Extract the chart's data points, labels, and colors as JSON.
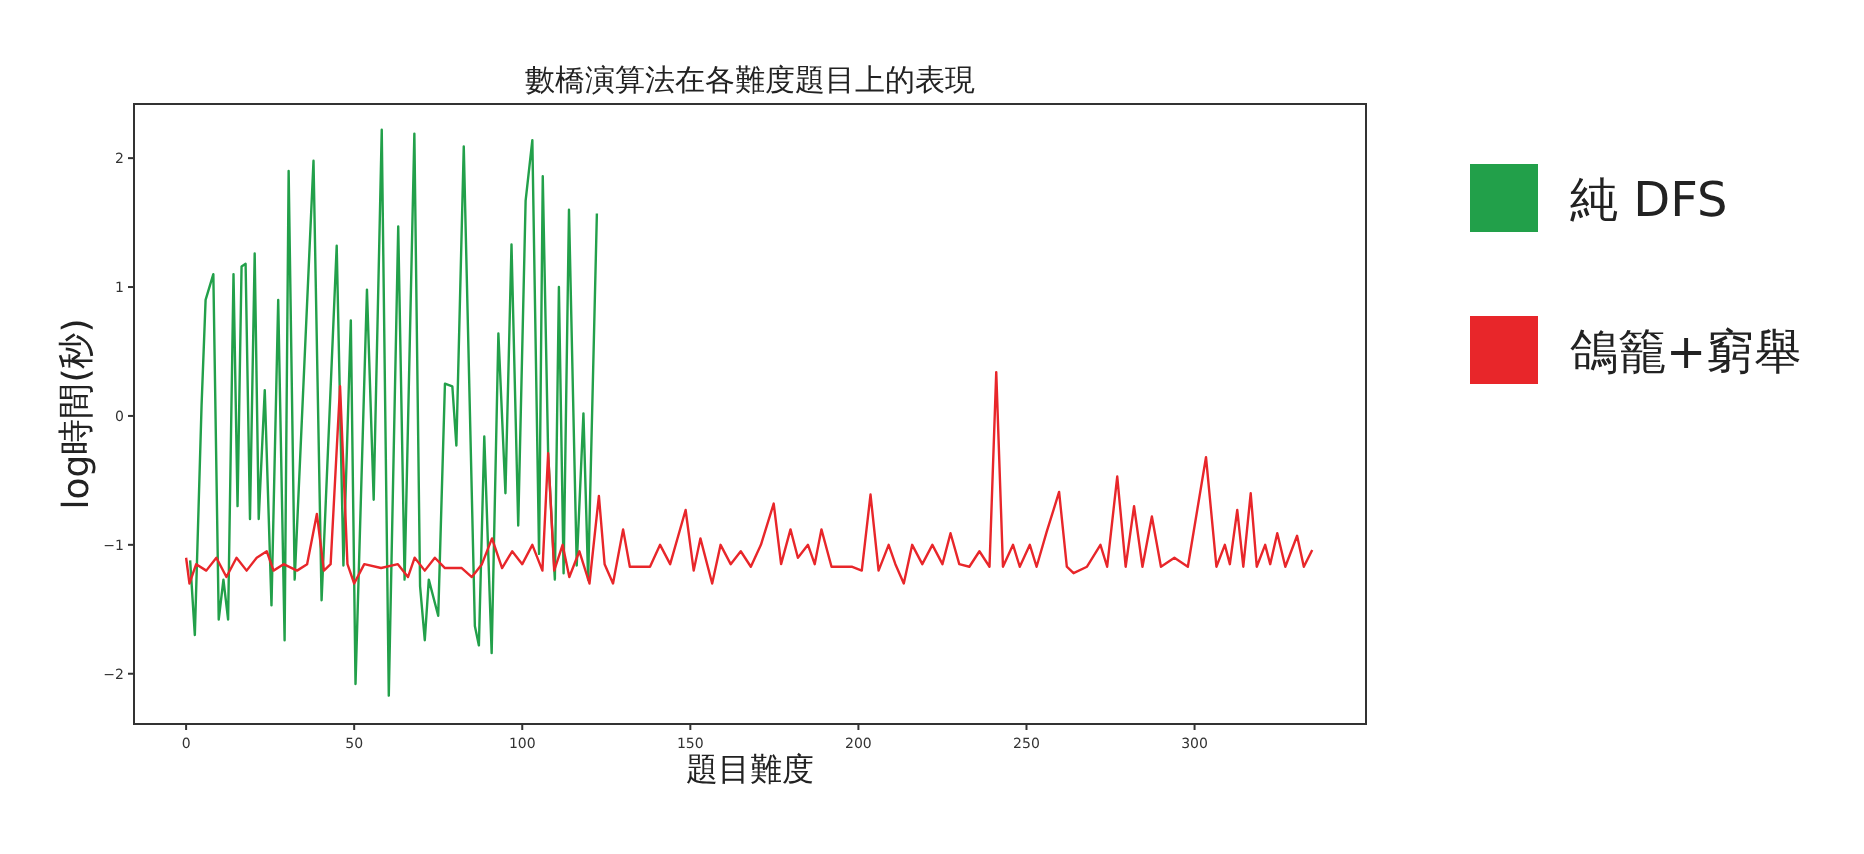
{
  "chart_data": {
    "type": "line",
    "title": "數橋演算法在各難度題目上的表現",
    "xlabel": "題目難度",
    "ylabel": "log時間(秒)",
    "xlim": [
      -15.5,
      351
    ],
    "ylim": [
      -2.39,
      2.42
    ],
    "xticks": [
      0,
      50,
      100,
      150,
      200,
      250,
      300
    ],
    "yticks": [
      -2,
      -1,
      0,
      1,
      2
    ],
    "legend": "right",
    "grid": false,
    "series": [
      {
        "name": "純 DFS",
        "color": "#22a04a",
        "x": [
          1.2,
          2.6,
          4.6,
          5.8,
          8.1,
          9.7,
          11.1,
          12.5,
          14.1,
          15.3,
          16.5,
          17.7,
          19,
          20.4,
          21.6,
          23.4,
          25.4,
          27.4,
          29.3,
          30.5,
          32.3,
          37.9,
          40.3,
          44.8,
          46.8,
          49,
          50.4,
          53.8,
          55.8,
          58.2,
          60.3,
          63.1,
          65,
          67.9,
          69.6,
          71,
          72.2,
          75,
          77,
          79.2,
          80.4,
          82.6,
          85.9,
          87.1,
          88.7,
          90.9,
          92.9,
          95,
          96.8,
          98.8,
          101,
          103,
          105,
          106.1,
          107.7,
          109.7,
          110.9,
          112.3,
          113.9,
          116.2,
          118.2,
          119.6,
          122.2
        ],
        "values": [
          -1.12,
          -1.7,
          0.08,
          0.9,
          1.1,
          -1.58,
          -1.27,
          -1.58,
          1.1,
          -0.7,
          1.16,
          1.18,
          -0.8,
          1.26,
          -0.8,
          0.2,
          -1.47,
          0.9,
          -1.74,
          1.9,
          -1.27,
          1.98,
          -1.43,
          1.32,
          -1.16,
          0.74,
          -2.08,
          0.98,
          -0.65,
          2.22,
          -2.17,
          1.47,
          -1.27,
          2.19,
          -1.32,
          -1.74,
          -1.27,
          -1.55,
          0.25,
          0.23,
          -0.23,
          2.09,
          -1.63,
          -1.78,
          -0.16,
          -1.84,
          0.64,
          -0.6,
          1.33,
          -0.85,
          1.67,
          2.14,
          -1.07,
          1.86,
          -0.29,
          -1.27,
          1.0,
          -1.22,
          1.6,
          -1.16,
          0.02,
          -1.27,
          1.57
        ]
      },
      {
        "name": "鴿籠+窮舉",
        "color": "#e8262a",
        "x": [
          0,
          1,
          3,
          6,
          9,
          12,
          15,
          18,
          21,
          24,
          26,
          29,
          33,
          36,
          38.9,
          41,
          43,
          45.8,
          48,
          50,
          53,
          58,
          63,
          66,
          68,
          71,
          74,
          77,
          82,
          85,
          88,
          91,
          94,
          97,
          100,
          103,
          106,
          107.7,
          109.5,
          112,
          114,
          117,
          120,
          122.8,
          124.5,
          127,
          130,
          132,
          138,
          141,
          144,
          148.6,
          151,
          153,
          156.5,
          159,
          162,
          165,
          168,
          171,
          174.8,
          177,
          179.8,
          182,
          185,
          187,
          189,
          192,
          198,
          201,
          203.6,
          206,
          209,
          211,
          213.5,
          216,
          219,
          222,
          225,
          227.4,
          230,
          233,
          236,
          239,
          241,
          243,
          246,
          248,
          251,
          253,
          256,
          259.7,
          262,
          264,
          268,
          272,
          274,
          277,
          279.5,
          282,
          284.5,
          287.3,
          290,
          294,
          298,
          303.4,
          306.5,
          309,
          310.5,
          312.7,
          314.5,
          316.7,
          318.5,
          321,
          322.5,
          324.6,
          327,
          330.5,
          332.5,
          335
        ],
        "values": [
          -1.1,
          -1.3,
          -1.15,
          -1.2,
          -1.1,
          -1.25,
          -1.1,
          -1.2,
          -1.1,
          -1.05,
          -1.2,
          -1.15,
          -1.2,
          -1.15,
          -0.76,
          -1.2,
          -1.15,
          0.23,
          -1.15,
          -1.3,
          -1.15,
          -1.18,
          -1.15,
          -1.25,
          -1.1,
          -1.2,
          -1.1,
          -1.18,
          -1.18,
          -1.25,
          -1.15,
          -0.95,
          -1.18,
          -1.05,
          -1.15,
          -1.0,
          -1.2,
          -0.29,
          -1.2,
          -1.0,
          -1.25,
          -1.05,
          -1.3,
          -0.62,
          -1.15,
          -1.3,
          -0.88,
          -1.17,
          -1.17,
          -1.0,
          -1.15,
          -0.73,
          -1.2,
          -0.95,
          -1.3,
          -1.0,
          -1.15,
          -1.05,
          -1.17,
          -1.0,
          -0.68,
          -1.15,
          -0.88,
          -1.1,
          -1.0,
          -1.15,
          -0.88,
          -1.17,
          -1.17,
          -1.2,
          -0.61,
          -1.2,
          -1.0,
          -1.15,
          -1.3,
          -1.0,
          -1.15,
          -1.0,
          -1.15,
          -0.91,
          -1.15,
          -1.17,
          -1.05,
          -1.17,
          0.34,
          -1.17,
          -1.0,
          -1.17,
          -1.0,
          -1.17,
          -0.9,
          -0.59,
          -1.17,
          -1.22,
          -1.17,
          -1.0,
          -1.17,
          -0.47,
          -1.17,
          -0.7,
          -1.17,
          -0.78,
          -1.17,
          -1.1,
          -1.17,
          -0.32,
          -1.17,
          -1.0,
          -1.15,
          -0.73,
          -1.17,
          -0.6,
          -1.17,
          -1.0,
          -1.15,
          -0.91,
          -1.17,
          -0.93,
          -1.17,
          -1.04
        ]
      }
    ]
  }
}
